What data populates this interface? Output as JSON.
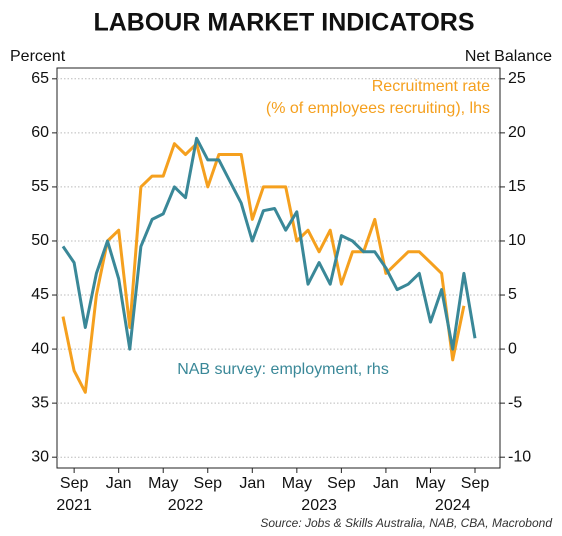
{
  "chart_data": {
    "type": "line",
    "title": "LABOUR MARKET INDICATORS",
    "y_label": "Percent",
    "y2_label": "Net Balance",
    "source": "Source: Jobs & Skills Australia, NAB, CBA, Macrobond",
    "categories": [
      null,
      "Sep",
      null,
      null,
      null,
      "Jan",
      null,
      null,
      null,
      "May",
      null,
      null,
      null,
      "Sep",
      null,
      null,
      null,
      "Jan",
      null,
      null,
      null,
      "May",
      null,
      null,
      null,
      "Sep",
      null,
      null,
      null,
      "Jan",
      null,
      null,
      null,
      "May",
      null,
      null,
      null,
      "Sep"
    ],
    "year_labels": [
      "2021",
      "2022",
      "2023",
      "2024"
    ],
    "ylim": [
      29,
      66
    ],
    "yticks": [
      30,
      35,
      40,
      45,
      50,
      55,
      60,
      65
    ],
    "y2lim": [
      -11,
      26
    ],
    "y2ticks": [
      -10,
      -5,
      0,
      5,
      10,
      15,
      20,
      25
    ],
    "grid": true,
    "series": [
      {
        "name": [
          "Recruitment rate",
          "(% of employees recruiting), lhs"
        ],
        "color": "#f5a01e",
        "values": [
          43,
          38,
          36,
          45,
          50,
          51,
          42,
          55,
          56,
          56,
          59,
          58,
          59,
          55,
          58,
          58,
          58,
          52,
          55,
          55,
          55,
          50,
          51,
          49,
          51,
          46,
          49,
          49,
          52,
          47,
          48,
          49,
          49,
          48,
          47,
          39,
          44,
          null
        ]
      },
      {
        "name": "NAB survey: employment, rhs",
        "color": "#3a8898",
        "axis": "y2",
        "values": [
          9.5,
          8,
          2,
          7,
          10,
          6.5,
          0,
          9.5,
          12,
          12.5,
          15,
          14,
          19.5,
          17.5,
          17.5,
          15.5,
          13.5,
          10,
          12.8,
          13,
          11,
          12.7,
          6,
          8,
          6,
          10.5,
          10,
          9,
          9,
          7.5,
          5.5,
          6,
          7,
          2.5,
          5.5,
          0,
          7,
          1
        ]
      }
    ]
  }
}
